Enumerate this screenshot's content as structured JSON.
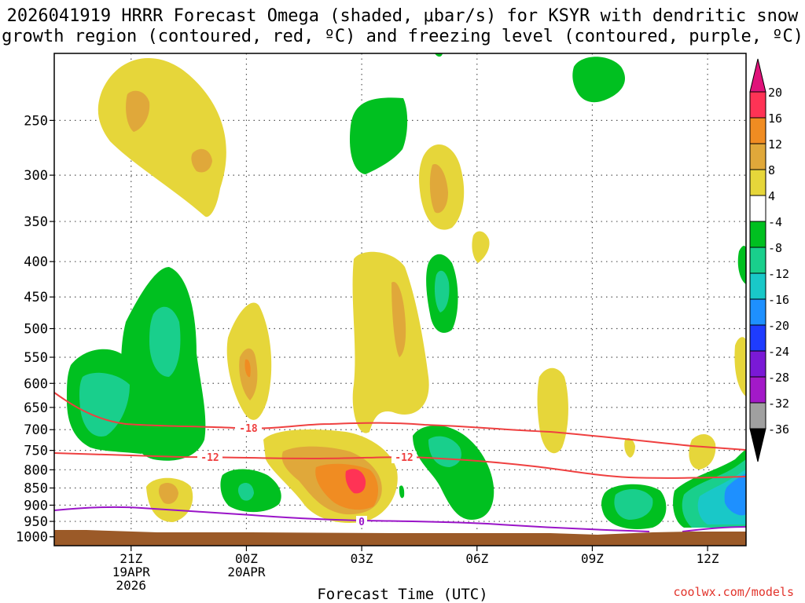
{
  "title_line1": "2026041919 HRRR Forecast Omega (shaded, μbar/s) for KSYR with dendritic snow",
  "title_line2": "growth region (contoured, red, ºC) and freezing level (contoured, purple, ºC)",
  "x_axis_title": "Forecast Time (UTC)",
  "credit": "coolwx.com/models",
  "chart_data": {
    "type": "contour",
    "x_ticks": [
      {
        "hour": 21,
        "lines": [
          "21Z",
          "19APR",
          "2026"
        ]
      },
      {
        "hour": 24,
        "lines": [
          "00Z",
          "20APR"
        ]
      },
      {
        "hour": 27,
        "lines": [
          "03Z"
        ]
      },
      {
        "hour": 30,
        "lines": [
          "06Z"
        ]
      },
      {
        "hour": 33,
        "lines": [
          "09Z"
        ]
      },
      {
        "hour": 36,
        "lines": [
          "12Z"
        ]
      }
    ],
    "x_range": [
      19.0,
      37.0
    ],
    "y_ticks": [
      250,
      300,
      350,
      400,
      450,
      500,
      550,
      600,
      650,
      700,
      750,
      800,
      850,
      900,
      950,
      1000
    ],
    "y_range_hPa": [
      200,
      1030
    ],
    "y_scale": "log",
    "colorbar": {
      "labels": [
        "20",
        "16",
        "12",
        "8",
        "4",
        "-4",
        "-8",
        "-12",
        "-16",
        "-20",
        "-24",
        "-28",
        "-32",
        "-36"
      ],
      "colors": [
        "#ff3355",
        "#f08c22",
        "#e0a83a",
        "#e6d63a",
        "#ffffff",
        "#00c020",
        "#19cf8c",
        "#19c8c8",
        "#1e90ff",
        "#1e3cff",
        "#7a19d6",
        "#a319c8",
        "#a0a0a0"
      ],
      "top_color": "#e0127a",
      "bottom_color": "#000000"
    },
    "contours": [
      {
        "name": "-18",
        "color": "#ef4040",
        "label": "-18"
      },
      {
        "name": "-12",
        "color": "#ef4040",
        "label": "-12"
      },
      {
        "name": "0",
        "color": "#9a14c8",
        "label": "0"
      }
    ]
  }
}
